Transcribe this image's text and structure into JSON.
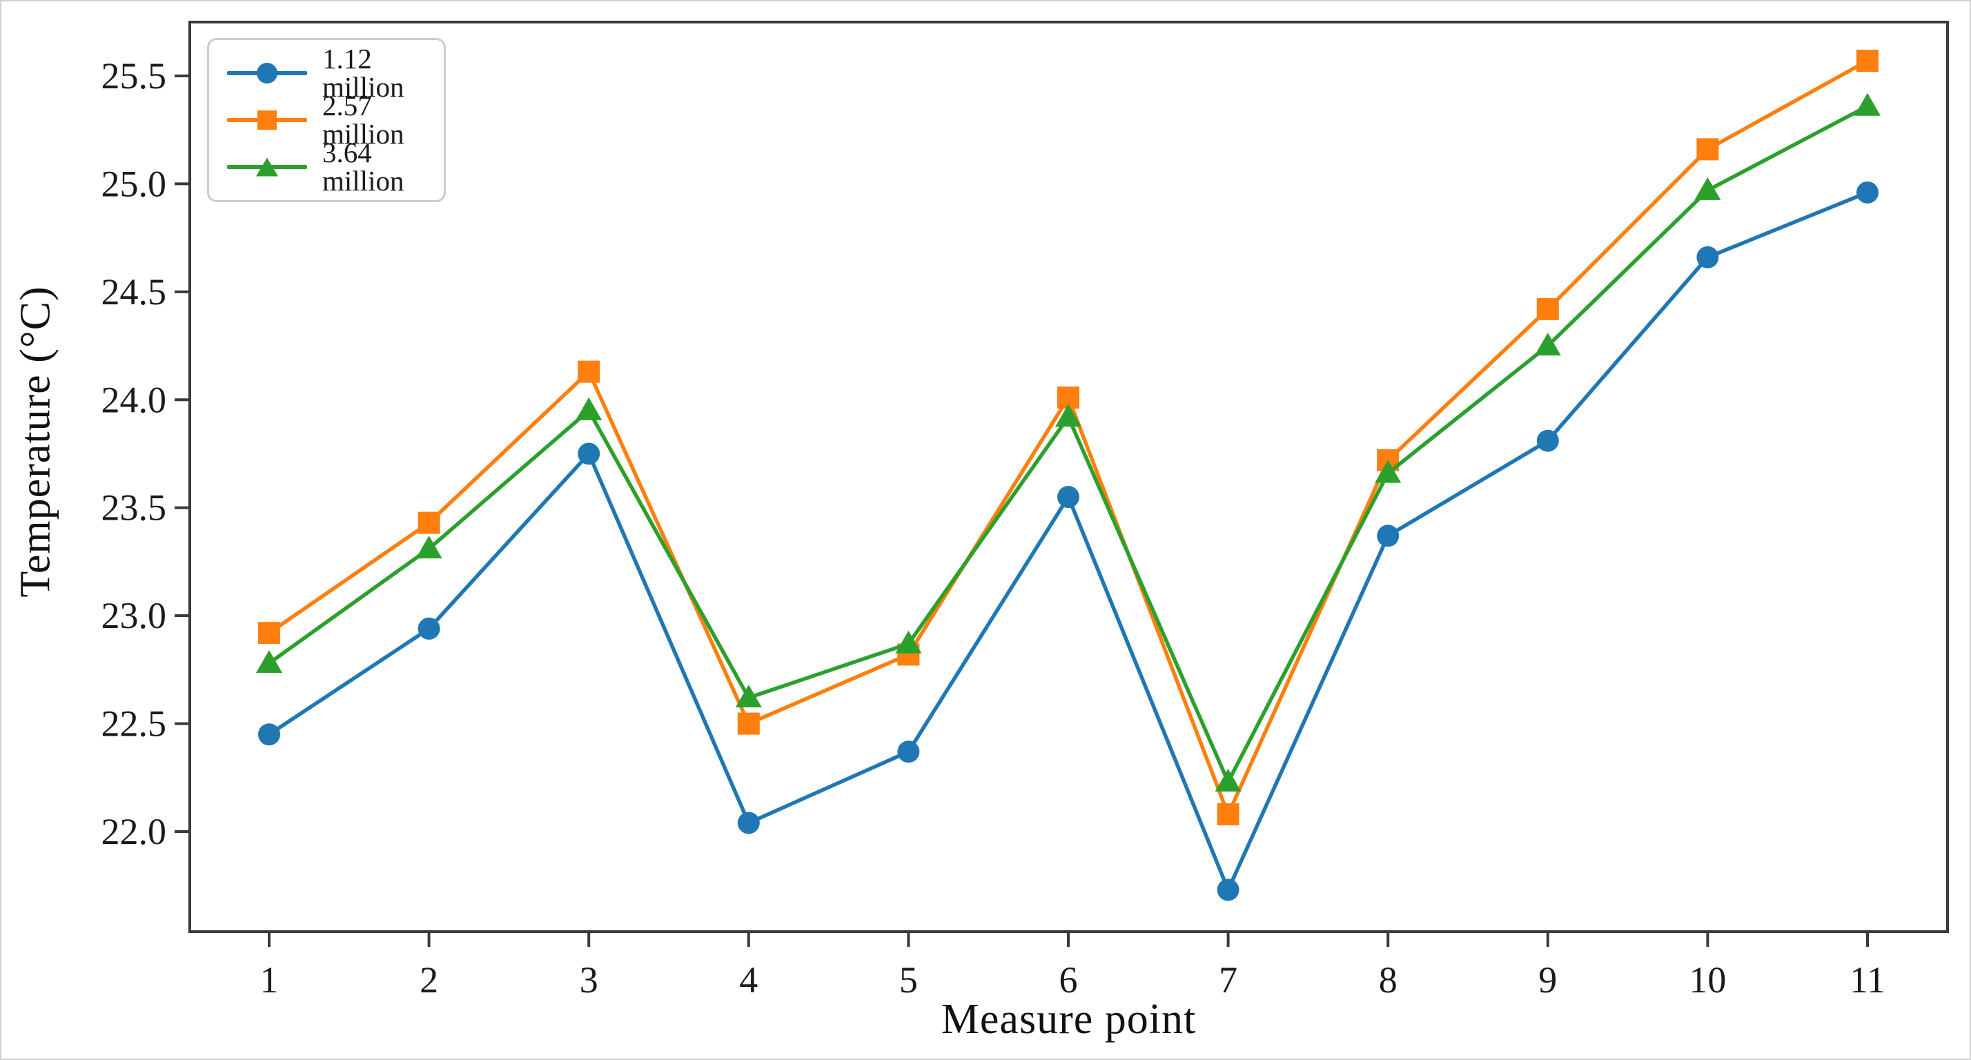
{
  "figure": {
    "background": "#ffffff",
    "frame_border_color": "#cfcfcf"
  },
  "chart_data": {
    "type": "line",
    "title": "",
    "xlabel": "Measure point",
    "ylabel": "Temperature  (°C)",
    "x": [
      1,
      2,
      3,
      4,
      5,
      6,
      7,
      8,
      9,
      10,
      11
    ],
    "xtick_labels": [
      "1",
      "2",
      "3",
      "4",
      "5",
      "6",
      "7",
      "8",
      "9",
      "10",
      "11"
    ],
    "yticks": [
      22.0,
      22.5,
      23.0,
      23.5,
      24.0,
      24.5,
      25.0,
      25.5
    ],
    "ylim": [
      21.54,
      25.75
    ],
    "grid": false,
    "legend_position": "upper left",
    "axis_color": "#3a3a3a",
    "tick_label_color": "#1a1a1a",
    "series": [
      {
        "name": "1.12 million",
        "color": "#1f77b4",
        "marker": "circle",
        "values": [
          22.45,
          22.94,
          23.75,
          22.04,
          22.37,
          23.55,
          21.73,
          23.37,
          23.81,
          24.66,
          24.96
        ]
      },
      {
        "name": "2.57 million",
        "color": "#ff7f0e",
        "marker": "square",
        "values": [
          22.92,
          23.43,
          24.13,
          22.5,
          22.82,
          24.01,
          22.08,
          23.72,
          24.42,
          25.16,
          25.57
        ]
      },
      {
        "name": "3.64 million",
        "color": "#2ca02c",
        "marker": "triangle",
        "values": [
          22.78,
          23.31,
          23.95,
          22.62,
          22.87,
          23.92,
          22.23,
          23.66,
          24.25,
          24.97,
          25.36
        ]
      }
    ]
  }
}
